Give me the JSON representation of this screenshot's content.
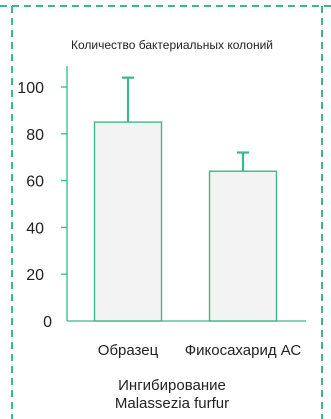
{
  "colors": {
    "accent": "#3cb88a",
    "bar_fill": "#f3f3f3",
    "text": "#222222"
  },
  "chart_data": {
    "type": "bar",
    "title": "Количество бактериальных колоний",
    "caption": [
      "Ингибирование",
      "Malassezia furfur"
    ],
    "categories": [
      "Образец",
      "Фикосахарид АС"
    ],
    "values": [
      85,
      64
    ],
    "error": [
      19,
      8
    ],
    "yticks": [
      0,
      20,
      40,
      60,
      80,
      100
    ],
    "ylim": [
      0,
      110
    ],
    "grid": false,
    "legend": "none"
  }
}
